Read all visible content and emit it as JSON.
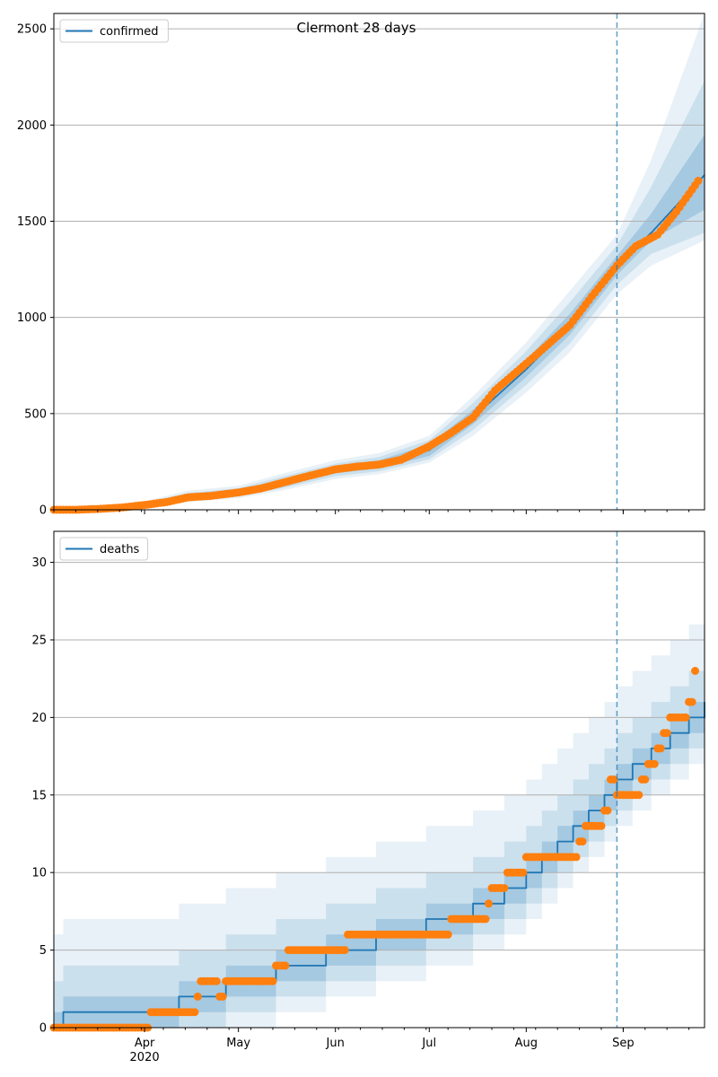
{
  "figure": {
    "title": "Clermont 28 days",
    "date_tick_labels": [
      "Apr",
      "May",
      "Jun",
      "Jul",
      "Aug",
      "Sep"
    ],
    "year_label": "2020",
    "forecast_start": "2020-08-30"
  },
  "colors": {
    "model_line": "#1f77b4",
    "observed": "#ff7f0e",
    "band": "#1f77b4",
    "grid": "#b0b0b0",
    "forecast_marker": "#1f77b4"
  },
  "chart_data": [
    {
      "type": "line",
      "legend": "confirmed",
      "legend_position": "upper-left",
      "x_range": [
        "2020-03-03",
        "2020-09-27"
      ],
      "ylim": [
        0,
        2580
      ],
      "y_ticks": [
        0,
        500,
        1000,
        1500,
        2000,
        2500
      ],
      "grid": "horizontal",
      "model_median": [
        {
          "date": "2020-03-03",
          "value": 0
        },
        {
          "date": "2020-03-18",
          "value": 5
        },
        {
          "date": "2020-04-01",
          "value": 25
        },
        {
          "date": "2020-04-15",
          "value": 65
        },
        {
          "date": "2020-05-01",
          "value": 90
        },
        {
          "date": "2020-05-15",
          "value": 140
        },
        {
          "date": "2020-06-01",
          "value": 205
        },
        {
          "date": "2020-06-15",
          "value": 235
        },
        {
          "date": "2020-07-01",
          "value": 310
        },
        {
          "date": "2020-07-15",
          "value": 480
        },
        {
          "date": "2020-08-01",
          "value": 730
        },
        {
          "date": "2020-08-15",
          "value": 960
        },
        {
          "date": "2020-08-30",
          "value": 1270
        },
        {
          "date": "2020-09-10",
          "value": 1440
        },
        {
          "date": "2020-09-27",
          "value": 1740
        }
      ],
      "bands": [
        {
          "name": "inner",
          "lower": [
            0,
            4,
            20,
            55,
            80,
            125,
            190,
            215,
            280,
            445,
            690,
            910,
            1220,
            1400,
            1560
          ],
          "upper": [
            0,
            7,
            32,
            78,
            102,
            158,
            225,
            258,
            340,
            520,
            780,
            1020,
            1320,
            1540,
            1950
          ]
        },
        {
          "name": "middle",
          "lower": [
            0,
            3,
            16,
            48,
            70,
            112,
            175,
            200,
            262,
            415,
            650,
            865,
            1170,
            1330,
            1440
          ],
          "upper": [
            0,
            9,
            38,
            88,
            112,
            172,
            240,
            275,
            362,
            555,
            825,
            1080,
            1375,
            1680,
            2230
          ]
        },
        {
          "name": "outer",
          "lower": [
            0,
            2,
            12,
            40,
            60,
            100,
            160,
            185,
            245,
            385,
            610,
            820,
            1120,
            1270,
            1400
          ],
          "upper": [
            0,
            12,
            45,
            100,
            125,
            188,
            258,
            295,
            385,
            590,
            870,
            1140,
            1430,
            1820,
            2580
          ]
        }
      ],
      "observed": [
        {
          "date": "2020-03-03",
          "value": 0
        },
        {
          "date": "2020-03-10",
          "value": 0
        },
        {
          "date": "2020-03-18",
          "value": 5
        },
        {
          "date": "2020-03-25",
          "value": 12
        },
        {
          "date": "2020-04-01",
          "value": 25
        },
        {
          "date": "2020-04-08",
          "value": 40
        },
        {
          "date": "2020-04-15",
          "value": 65
        },
        {
          "date": "2020-04-22",
          "value": 72
        },
        {
          "date": "2020-05-01",
          "value": 90
        },
        {
          "date": "2020-05-08",
          "value": 110
        },
        {
          "date": "2020-05-15",
          "value": 140
        },
        {
          "date": "2020-05-22",
          "value": 170
        },
        {
          "date": "2020-06-01",
          "value": 210
        },
        {
          "date": "2020-06-08",
          "value": 225
        },
        {
          "date": "2020-06-15",
          "value": 235
        },
        {
          "date": "2020-06-22",
          "value": 260
        },
        {
          "date": "2020-07-01",
          "value": 330
        },
        {
          "date": "2020-07-08",
          "value": 400
        },
        {
          "date": "2020-07-15",
          "value": 480
        },
        {
          "date": "2020-07-22",
          "value": 620
        },
        {
          "date": "2020-08-01",
          "value": 760
        },
        {
          "date": "2020-08-08",
          "value": 860
        },
        {
          "date": "2020-08-15",
          "value": 960
        },
        {
          "date": "2020-08-22",
          "value": 1110
        },
        {
          "date": "2020-08-30",
          "value": 1270
        },
        {
          "date": "2020-09-05",
          "value": 1370
        },
        {
          "date": "2020-09-12",
          "value": 1430
        },
        {
          "date": "2020-09-18",
          "value": 1550
        },
        {
          "date": "2020-09-25",
          "value": 1710
        }
      ]
    },
    {
      "type": "line",
      "legend": "deaths",
      "legend_position": "upper-left",
      "x_range": [
        "2020-03-03",
        "2020-09-27"
      ],
      "ylim": [
        0,
        32
      ],
      "y_ticks": [
        0,
        5,
        10,
        15,
        20,
        25,
        30
      ],
      "grid": "horizontal",
      "model_median_steps": [
        {
          "date": "2020-03-03",
          "value": 0
        },
        {
          "date": "2020-03-06",
          "value": 1
        },
        {
          "date": "2020-04-12",
          "value": 2
        },
        {
          "date": "2020-04-27",
          "value": 3
        },
        {
          "date": "2020-05-13",
          "value": 4
        },
        {
          "date": "2020-05-29",
          "value": 5
        },
        {
          "date": "2020-06-14",
          "value": 6
        },
        {
          "date": "2020-06-30",
          "value": 7
        },
        {
          "date": "2020-07-15",
          "value": 8
        },
        {
          "date": "2020-07-25",
          "value": 9
        },
        {
          "date": "2020-08-01",
          "value": 10
        },
        {
          "date": "2020-08-06",
          "value": 11
        },
        {
          "date": "2020-08-11",
          "value": 12
        },
        {
          "date": "2020-08-16",
          "value": 13
        },
        {
          "date": "2020-08-21",
          "value": 14
        },
        {
          "date": "2020-08-26",
          "value": 15
        },
        {
          "date": "2020-08-30",
          "value": 16
        },
        {
          "date": "2020-09-04",
          "value": 17
        },
        {
          "date": "2020-09-10",
          "value": 18
        },
        {
          "date": "2020-09-16",
          "value": 19
        },
        {
          "date": "2020-09-22",
          "value": 20
        },
        {
          "date": "2020-09-27",
          "value": 21
        }
      ],
      "band_lower_offsets": [
        -1,
        -2,
        -3
      ],
      "band_upper_offsets": [
        1,
        3,
        6
      ],
      "observed": [
        {
          "date": "2020-03-03",
          "value": 0
        },
        {
          "date": "2020-03-16",
          "value": 0
        },
        {
          "date": "2020-03-31",
          "value": 0
        },
        {
          "date": "2020-04-03",
          "value": 1
        },
        {
          "date": "2020-04-15",
          "value": 1
        },
        {
          "date": "2020-04-18",
          "value": 2
        },
        {
          "date": "2020-04-19",
          "value": 3
        },
        {
          "date": "2020-04-25",
          "value": 2
        },
        {
          "date": "2020-04-27",
          "value": 3
        },
        {
          "date": "2020-05-11",
          "value": 3
        },
        {
          "date": "2020-05-13",
          "value": 4
        },
        {
          "date": "2020-05-17",
          "value": 5
        },
        {
          "date": "2020-06-04",
          "value": 5
        },
        {
          "date": "2020-06-05",
          "value": 6
        },
        {
          "date": "2020-06-25",
          "value": 6
        },
        {
          "date": "2020-07-06",
          "value": 6
        },
        {
          "date": "2020-07-08",
          "value": 7
        },
        {
          "date": "2020-07-19",
          "value": 7
        },
        {
          "date": "2020-07-20",
          "value": 8
        },
        {
          "date": "2020-07-21",
          "value": 9
        },
        {
          "date": "2020-07-26",
          "value": 10
        },
        {
          "date": "2020-08-01",
          "value": 11
        },
        {
          "date": "2020-08-17",
          "value": 11
        },
        {
          "date": "2020-08-18",
          "value": 12
        },
        {
          "date": "2020-08-20",
          "value": 13
        },
        {
          "date": "2020-08-26",
          "value": 14
        },
        {
          "date": "2020-08-28",
          "value": 16
        },
        {
          "date": "2020-08-30",
          "value": 15
        },
        {
          "date": "2020-09-05",
          "value": 15
        },
        {
          "date": "2020-09-07",
          "value": 16
        },
        {
          "date": "2020-09-09",
          "value": 17
        },
        {
          "date": "2020-09-12",
          "value": 18
        },
        {
          "date": "2020-09-14",
          "value": 19
        },
        {
          "date": "2020-09-16",
          "value": 20
        },
        {
          "date": "2020-09-20",
          "value": 20
        },
        {
          "date": "2020-09-22",
          "value": 21
        },
        {
          "date": "2020-09-24",
          "value": 23
        }
      ]
    }
  ]
}
